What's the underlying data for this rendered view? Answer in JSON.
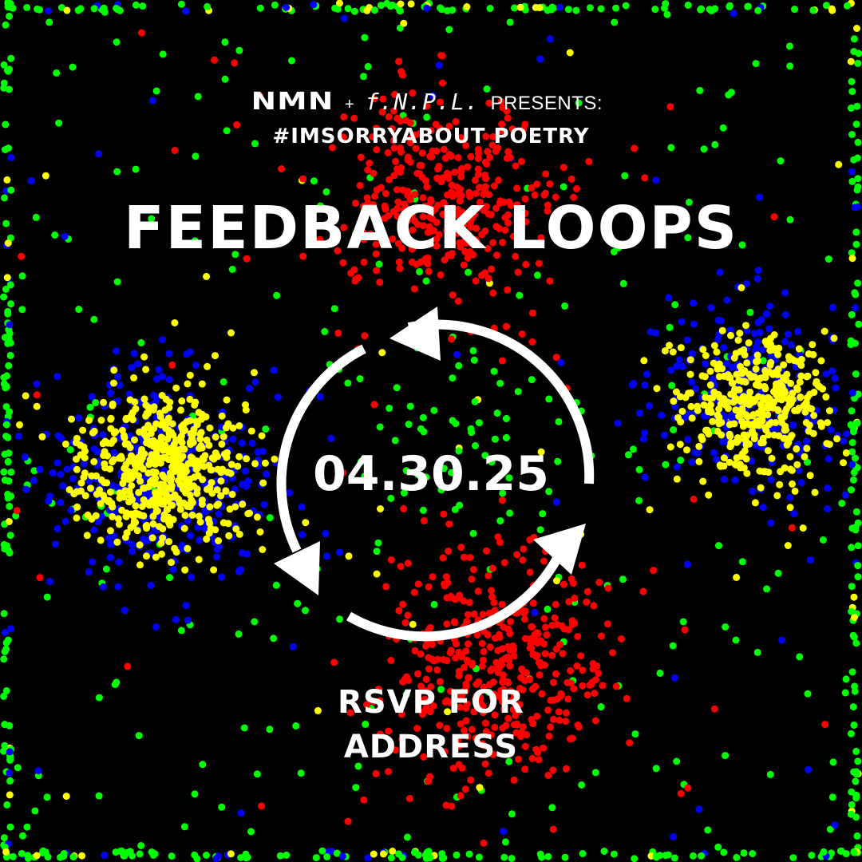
{
  "header": {
    "logo_nmn": "NMN",
    "plus": "+",
    "logo_fnpl": "f.N.P.L.",
    "presents": "PRESENTS:"
  },
  "subtitle": "#IMSORRYABOUT POETRY",
  "title": "FEEDBACK LOOPS",
  "date": "04.30.25",
  "rsvp": {
    "line1": "RSVP FOR",
    "line2": "ADDRESS"
  },
  "colors": {
    "background": "#000000",
    "text": "#ffffff",
    "dot_red": "#ff0000",
    "dot_green": "#00ff00",
    "dot_blue": "#0000ff",
    "dot_yellow": "#ffff00"
  },
  "icons": {
    "cycle": "circular-arrows-icon"
  }
}
